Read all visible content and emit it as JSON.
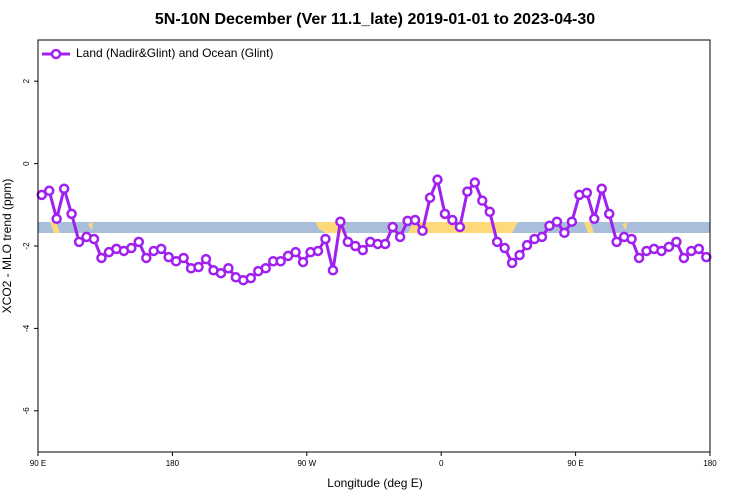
{
  "chart_data": {
    "type": "line",
    "title": "5N-10N December (Ver 11.1_late)   2019-01-01 to 2023-04-30",
    "x_label": "Longitude (deg E)",
    "y_label": "XCO2 - MLO trend (ppm)",
    "x": [
      92.5,
      97.5,
      102.5,
      107.5,
      112.5,
      117.5,
      122.5,
      127.5,
      132.5,
      137.5,
      142.5,
      147.5,
      152.5,
      157.5,
      162.5,
      167.5,
      172.5,
      177.5,
      182.5,
      187.5,
      192.5,
      197.5,
      202.5,
      207.5,
      212.5,
      217.5,
      222.5,
      227.5,
      232.5,
      237.5,
      242.5,
      247.5,
      252.5,
      257.5,
      262.5,
      267.5,
      272.5,
      277.5,
      282.5,
      287.5,
      292.5,
      297.5,
      302.5,
      307.5,
      312.5,
      317.5,
      322.5,
      327.5,
      332.5,
      337.5,
      342.5,
      347.5,
      352.5,
      357.5,
      362.5,
      367.5,
      372.5,
      377.5,
      382.5,
      387.5,
      392.5,
      397.5,
      402.5,
      407.5,
      412.5,
      417.5,
      422.5,
      427.5,
      432.5,
      437.5,
      442.5,
      447.5,
      452.5,
      457.5,
      462.5,
      467.5,
      472.5,
      477.5,
      482.5,
      487.5,
      492.5,
      497.5,
      502.5,
      507.5,
      512.5,
      517.5,
      522.5,
      527.5,
      532.5,
      537.5
    ],
    "series": [
      {
        "name": "Land (Nadir&Glint) and Ocean (Glint)",
        "color": "#a020f0",
        "values": [
          -0.76,
          -0.66,
          -1.34,
          -0.61,
          -1.22,
          -1.9,
          -1.78,
          -1.83,
          -2.29,
          -2.15,
          -2.07,
          -2.12,
          -2.05,
          -1.9,
          -2.29,
          -2.12,
          -2.07,
          -2.27,
          -2.37,
          -2.29,
          -2.54,
          -2.51,
          -2.32,
          -2.59,
          -2.66,
          -2.54,
          -2.76,
          -2.83,
          -2.78,
          -2.61,
          -2.54,
          -2.37,
          -2.37,
          -2.24,
          -2.15,
          -2.39,
          -2.15,
          -2.12,
          -1.83,
          -2.59,
          -1.41,
          -1.9,
          -2.0,
          -2.1,
          -1.9,
          -1.95,
          -1.95,
          -1.54,
          -1.78,
          -1.39,
          -1.37,
          -1.63,
          -0.83,
          -0.39,
          -1.22,
          -1.37,
          -1.54,
          -0.68,
          -0.46,
          -0.9,
          -1.17,
          -1.9,
          -2.05,
          -2.41,
          -2.22,
          -1.98,
          -1.83,
          -1.78,
          -1.51,
          -1.41,
          -1.68,
          -1.41,
          -0.76,
          -0.71,
          -1.34,
          -0.61,
          -1.22,
          -1.9,
          -1.78,
          -1.83,
          -2.29,
          -2.12,
          -2.07,
          -2.12,
          -2.02,
          -1.9,
          -2.29,
          -2.12,
          -2.07,
          -2.27
        ]
      }
    ],
    "xlim": [
      90,
      540
    ],
    "xticks": [
      {
        "value": 90,
        "label": "90 E"
      },
      {
        "value": 180,
        "label": "180"
      },
      {
        "value": 270,
        "label": "90 W"
      },
      {
        "value": 360,
        "label": "0"
      },
      {
        "value": 450,
        "label": "90 E"
      },
      {
        "value": 540,
        "label": "180"
      }
    ],
    "ylim": [
      -7,
      3
    ],
    "yticks": [
      -6,
      -4,
      -2,
      0,
      2
    ],
    "legend": "top-left"
  }
}
